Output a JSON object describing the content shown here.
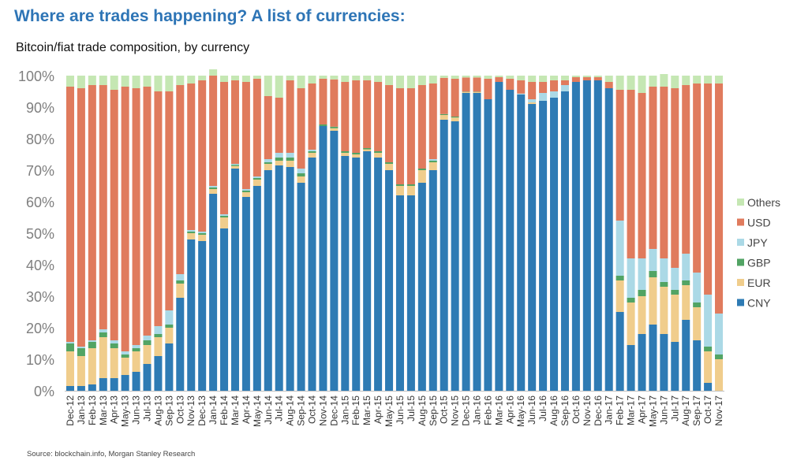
{
  "title": "Where are trades happening? A list of currencies:",
  "subtitle": "Bitcoin/fiat trade composition, by currency",
  "source": "Source: blockchain.info, Morgan Stanley Research",
  "chart_data": {
    "type": "bar",
    "stacked": true,
    "ylim": [
      0,
      100
    ],
    "yticks": [
      "0%",
      "10%",
      "20%",
      "30%",
      "40%",
      "50%",
      "60%",
      "70%",
      "80%",
      "90%",
      "100%"
    ],
    "grid": false,
    "legend_position": "right",
    "categories": [
      "Dec-12",
      "Jan-13",
      "Feb-13",
      "Mar-13",
      "Apr-13",
      "May-13",
      "Jun-13",
      "Jul-13",
      "Aug-13",
      "Sep-13",
      "Oct-13",
      "Nov-13",
      "Dec-13",
      "Jan-14",
      "Feb-14",
      "Mar-14",
      "Apr-14",
      "May-14",
      "Jun-14",
      "Jul-14",
      "Aug-14",
      "Sep-14",
      "Oct-14",
      "Nov-14",
      "Dec-14",
      "Jan-15",
      "Feb-15",
      "Mar-15",
      "Apr-15",
      "May-15",
      "Jun-15",
      "Jul-15",
      "Aug-15",
      "Sep-15",
      "Oct-15",
      "Nov-15",
      "Dec-15",
      "Jan-16",
      "Feb-16",
      "Mar-16",
      "Apr-16",
      "May-16",
      "Jun-16",
      "Jul-16",
      "Aug-16",
      "Sep-16",
      "Oct-16",
      "Nov-16",
      "Dec-16",
      "Jan-17",
      "Feb-17",
      "Mar-17",
      "Apr-17",
      "May-17",
      "Jun-17",
      "Jul-17",
      "Aug-17",
      "Sep-17",
      "Oct-17",
      "Nov-17"
    ],
    "series": [
      {
        "name": "CNY",
        "color": "#2e7bb4",
        "values": [
          1.5,
          1.5,
          2,
          4,
          4,
          5,
          6,
          8.5,
          11,
          15,
          29.5,
          48,
          47.5,
          62.5,
          51.5,
          70.5,
          61.5,
          65,
          70,
          71.5,
          71,
          66,
          74,
          84,
          82.5,
          74.5,
          74,
          76,
          74,
          70,
          62,
          62,
          66,
          70,
          86,
          85.5,
          94.5,
          94.5,
          92.5,
          98,
          95.5,
          94,
          91,
          92,
          93,
          95,
          98,
          98.5,
          98.5,
          96,
          25,
          14.5,
          18,
          21,
          18,
          15.5,
          22.5,
          16,
          2.5,
          0
        ]
      },
      {
        "name": "EUR",
        "color": "#f0cd8c",
        "values": [
          11,
          9.5,
          11.5,
          13,
          9.5,
          5.5,
          6.5,
          6,
          6,
          5,
          4.5,
          2,
          2,
          1.5,
          3.5,
          0.8,
          1.5,
          2,
          2,
          1.5,
          2,
          2,
          1.5,
          0,
          0.8,
          1,
          1,
          0.6,
          1.5,
          2,
          3,
          3,
          4,
          2.5,
          1.5,
          1.2,
          0.3,
          0.3,
          0,
          0,
          0,
          0,
          0.5,
          0,
          0,
          0,
          0,
          0,
          0,
          0,
          10,
          13.5,
          12,
          15,
          15,
          15,
          11,
          10.5,
          10,
          10
        ]
      },
      {
        "name": "GBP",
        "color": "#52a464",
        "values": [
          2.5,
          2.5,
          2,
          1.5,
          1.5,
          1,
          1,
          1.5,
          1,
          1,
          1,
          0.5,
          0.5,
          0.5,
          0.5,
          0.4,
          0.5,
          0.5,
          0.5,
          1,
          1,
          1,
          0.5,
          0.5,
          0.5,
          0.5,
          0.5,
          0.4,
          0.5,
          0.5,
          0.5,
          0.5,
          0.5,
          0.5,
          0.3,
          0.3,
          0.1,
          0.1,
          0,
          0,
          0,
          0,
          0,
          0,
          0,
          0,
          0,
          0,
          0,
          0,
          1.5,
          1.5,
          2,
          2,
          1.5,
          1.5,
          1.5,
          1.5,
          1.5,
          1.5
        ]
      },
      {
        "name": "JPY",
        "color": "#abd9e6",
        "values": [
          0.5,
          0.5,
          0.5,
          1,
          1,
          1,
          1,
          1.5,
          2.5,
          4.5,
          2,
          0.5,
          0.5,
          0.5,
          0.5,
          0.3,
          0.5,
          0.5,
          1,
          1.5,
          1.5,
          1.5,
          0.5,
          0,
          0,
          0,
          0,
          0,
          0,
          0,
          0,
          0,
          0,
          0.5,
          0,
          0,
          0,
          0,
          0,
          0,
          0,
          0.3,
          1,
          2.5,
          2,
          2,
          0,
          0,
          0,
          0,
          17.5,
          12.5,
          10,
          7,
          7.5,
          7,
          8.5,
          9.5,
          16.5,
          13
        ]
      },
      {
        "name": "USD",
        "color": "#e07b5d",
        "values": [
          81,
          82,
          81,
          77.5,
          79.5,
          84,
          81.5,
          79,
          74.5,
          69.5,
          60,
          46.5,
          48,
          35,
          42,
          26.5,
          34,
          31,
          20,
          17.5,
          23,
          25.5,
          21,
          14.5,
          15,
          22,
          23,
          21.5,
          22,
          24.5,
          30.5,
          30.5,
          26.5,
          24,
          11.5,
          12,
          4.5,
          4.5,
          6.5,
          1.5,
          3.5,
          4.2,
          5.5,
          3.5,
          3.5,
          1.5,
          1.5,
          1,
          1,
          2,
          41.5,
          53.5,
          52.5,
          51.5,
          54.5,
          57,
          53.5,
          60,
          67,
          73
        ]
      },
      {
        "name": "Others",
        "color": "#c5e7b3",
        "values": [
          3.5,
          4,
          3,
          3,
          4.5,
          3.5,
          4,
          3.5,
          5,
          5,
          3,
          2.5,
          1.5,
          2,
          2,
          1.5,
          2,
          1,
          6.5,
          7,
          1.5,
          4,
          2.5,
          1,
          1.2,
          2,
          1.5,
          1.5,
          2,
          3,
          4,
          4,
          3,
          2.5,
          0.7,
          1,
          0.6,
          0.6,
          1,
          0.5,
          1,
          1.5,
          2,
          2,
          1.5,
          1.5,
          0.5,
          0.5,
          0.5,
          2,
          4.5,
          4.5,
          5.5,
          3.5,
          4,
          4,
          3,
          2.5,
          2.5,
          2.5
        ]
      }
    ],
    "legend_order": [
      "Others",
      "USD",
      "JPY",
      "GBP",
      "EUR",
      "CNY"
    ]
  }
}
